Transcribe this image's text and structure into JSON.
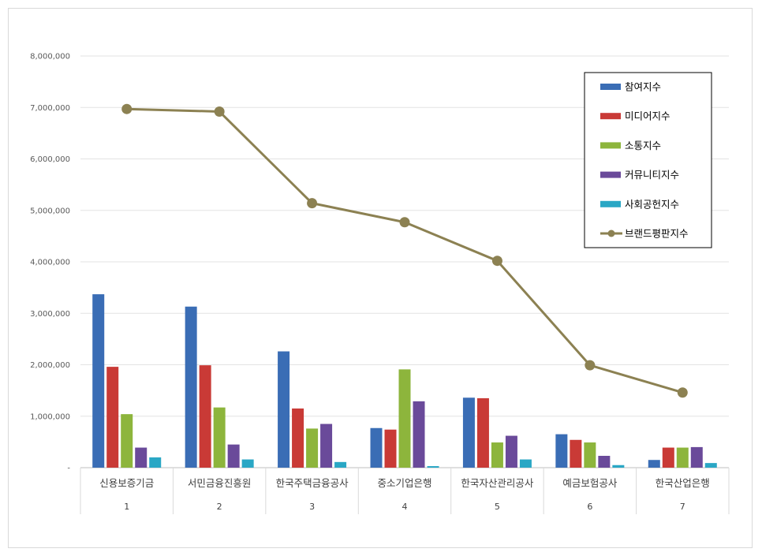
{
  "chart_data": {
    "type": "bar",
    "categories": [
      "신용보증기금",
      "서민금융진흥원",
      "한국주택금융공사",
      "중소기업은행",
      "한국자산관리공사",
      "예금보험공사",
      "한국산업은행"
    ],
    "category_numbers": [
      "1",
      "2",
      "3",
      "4",
      "5",
      "6",
      "7"
    ],
    "ylim": [
      0,
      8000000
    ],
    "yticks": [
      "-",
      "1,000,000",
      "2,000,000",
      "3,000,000",
      "4,000,000",
      "5,000,000",
      "6,000,000",
      "7,000,000",
      "8,000,000"
    ],
    "ytick_values": [
      0,
      1000000,
      2000000,
      3000000,
      4000000,
      5000000,
      6000000,
      7000000,
      8000000
    ],
    "grid": true,
    "legend_position": "top-right",
    "series": [
      {
        "name": "참여지수",
        "type": "bar",
        "color": "#3a6db5",
        "values": [
          3370000,
          3130000,
          2260000,
          770000,
          1360000,
          650000,
          150000
        ]
      },
      {
        "name": "미디어지수",
        "type": "bar",
        "color": "#c93a36",
        "values": [
          1960000,
          1990000,
          1150000,
          740000,
          1350000,
          540000,
          390000
        ]
      },
      {
        "name": "소통지수",
        "type": "bar",
        "color": "#8db53c",
        "values": [
          1040000,
          1170000,
          760000,
          1910000,
          490000,
          490000,
          390000
        ]
      },
      {
        "name": "커뮤니티지수",
        "type": "bar",
        "color": "#6a4a9a",
        "values": [
          390000,
          450000,
          850000,
          1290000,
          620000,
          230000,
          400000
        ]
      },
      {
        "name": "사회공헌지수",
        "type": "bar",
        "color": "#2aa7c5",
        "values": [
          200000,
          160000,
          110000,
          30000,
          160000,
          50000,
          90000
        ]
      },
      {
        "name": "브랜드평판지수",
        "type": "line",
        "color": "#8c8152",
        "values": [
          6970000,
          6920000,
          5140000,
          4770000,
          4020000,
          1990000,
          1460000
        ]
      }
    ]
  }
}
